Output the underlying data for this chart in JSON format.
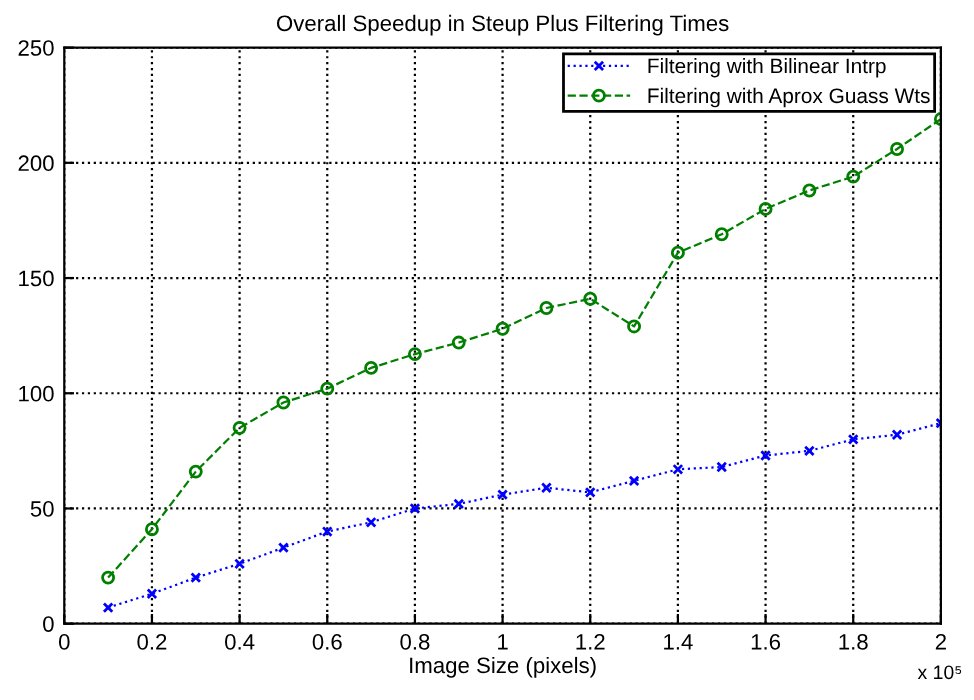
{
  "chart_data": {
    "type": "line",
    "title": "Overall Speedup in Steup Plus Filtering Times",
    "xlabel": "Image Size (pixels)",
    "x": [
      0.1,
      0.2,
      0.3,
      0.4,
      0.5,
      0.6,
      0.7,
      0.8,
      0.9,
      1.0,
      1.1,
      1.2,
      1.3,
      1.4,
      1.5,
      1.6,
      1.7,
      1.8,
      1.9,
      2.0
    ],
    "series": [
      {
        "name": "Filtering with Bilinear Intrp",
        "color": "#0000ff",
        "marker": "cross",
        "line_style": "dotted",
        "values": [
          7,
          13,
          20,
          26,
          33,
          40,
          44,
          50,
          52,
          56,
          59,
          57,
          62,
          67,
          68,
          73,
          75,
          80,
          82,
          87
        ]
      },
      {
        "name": "Filtering with Aprox Guass Wts",
        "color": "#007f00",
        "marker": "circle",
        "line_style": "dashed",
        "values": [
          20,
          41,
          66,
          85,
          96,
          102,
          111,
          117,
          122,
          128,
          137,
          141,
          129,
          161,
          169,
          180,
          188,
          194,
          206,
          219
        ]
      }
    ],
    "xlim": [
      0,
      2
    ],
    "ylim": [
      0,
      250
    ],
    "xticks": [
      0,
      0.2,
      0.4,
      0.6,
      0.8,
      1,
      1.2,
      1.4,
      1.6,
      1.8,
      2
    ],
    "yticks": [
      0,
      50,
      100,
      150,
      200,
      250
    ],
    "grid": true,
    "legend": "top right",
    "annotations": [
      "x 10⁵"
    ]
  }
}
